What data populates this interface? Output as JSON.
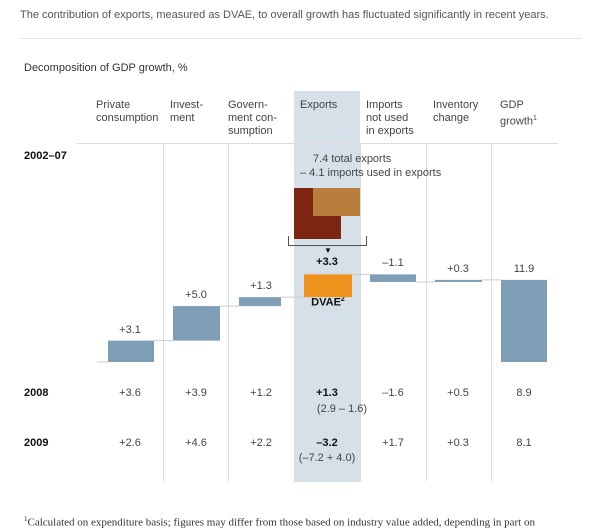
{
  "title": "The contribution of exports, measured as DVAE, to overall growth has fluctuated significantly in recent years.",
  "chart_data": {
    "type": "waterfall",
    "title": "Decomposition of GDP growth, %",
    "categories": [
      "Private consumption",
      "Invest-ment",
      "Govern-ment con-sumption",
      "Exports",
      "Imports not used in exports",
      "Inventory change",
      "GDP growth"
    ],
    "headers": [
      {
        "lines": [
          "Private",
          "consumption"
        ]
      },
      {
        "lines": [
          "Invest-",
          "ment"
        ]
      },
      {
        "lines": [
          "Govern-",
          "ment con-",
          "sumption"
        ]
      },
      {
        "lines": [
          "Exports"
        ]
      },
      {
        "lines": [
          "Imports",
          "not used",
          "in exports"
        ]
      },
      {
        "lines": [
          "Inventory",
          "change"
        ]
      },
      {
        "lines": [
          "GDP",
          "growth"
        ],
        "footnote": "1"
      }
    ],
    "series": [
      {
        "name": "2002–07",
        "values": [
          3.1,
          5.0,
          1.3,
          3.3,
          -1.1,
          0.3,
          11.9
        ],
        "labels": [
          "+3.1",
          "+5.0",
          "+1.3",
          "+3.3",
          "–1.1",
          "+0.3",
          "11.9"
        ],
        "exports_breakdown": {
          "total_exports": 7.4,
          "imports_used_in_exports": 4.1,
          "line1": "7.4 total exports",
          "line2": "– 4.1 imports used in exports",
          "dvae_label": "DVAE",
          "dvae_footnote": "2"
        }
      },
      {
        "name": "2008",
        "values": [
          3.6,
          3.9,
          1.2,
          1.3,
          -1.6,
          0.5,
          8.9
        ],
        "labels": [
          "+3.6",
          "+3.9",
          "+1.2",
          "+1.3",
          "–1.6",
          "+0.5",
          "8.9"
        ],
        "exports_detail": "(2.9 – 1.6)"
      },
      {
        "name": "2009",
        "values": [
          2.6,
          4.6,
          2.2,
          -3.2,
          1.7,
          0.3,
          8.1
        ],
        "labels": [
          "+2.6",
          "+4.6",
          "+2.2",
          "–3.2",
          "+1.7",
          "+0.3",
          "8.1"
        ],
        "exports_detail": "(–7.2 + 4.0)"
      }
    ],
    "colors": {
      "bar": "#7f9fb6",
      "dvae": "#f0921e",
      "total_exports": "#7d2513",
      "imports_used": "#b97d3c",
      "exports_band": "#d6e0e8"
    }
  },
  "footnote": "Calculated on expenditure basis; figures may differ from those based on industry value added, depending in part on",
  "footnote_marker": "1"
}
